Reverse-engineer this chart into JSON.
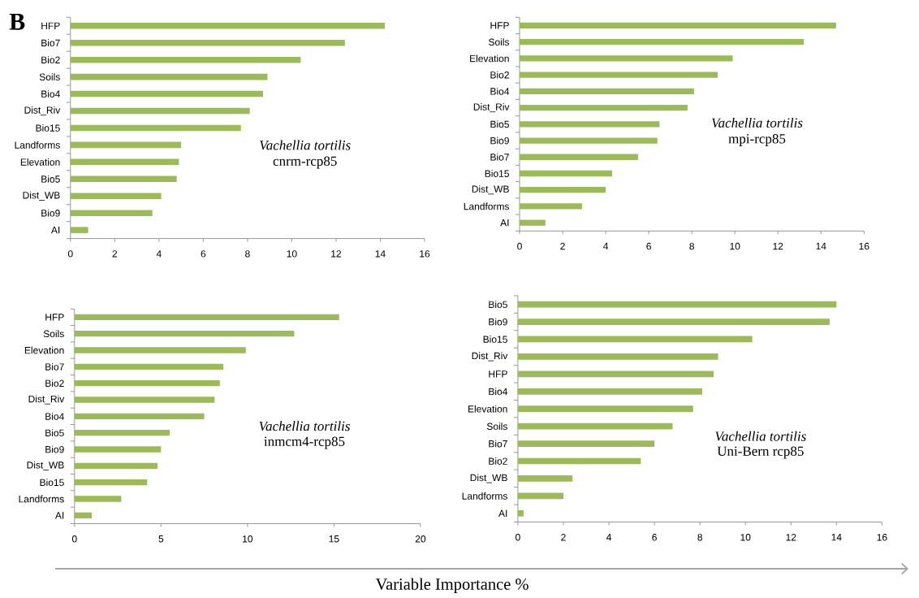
{
  "chart_data": [
    {
      "type": "bar",
      "orientation": "horizontal",
      "title": "Vachellia tortilis",
      "subtitle": "cnrm-rcp85",
      "annotations": [
        "B"
      ],
      "color": "#9bbb59",
      "categories": [
        "HFP",
        "Bio7",
        "Bio2",
        "Soils",
        "Bio4",
        "Dist_Riv",
        "Bio15",
        "Landforms",
        "Elevation",
        "Bio5",
        "Dist_WB",
        "Bio9",
        "AI"
      ],
      "values": [
        14.2,
        12.4,
        10.4,
        8.9,
        8.7,
        8.1,
        7.7,
        5.0,
        4.9,
        4.8,
        4.1,
        3.7,
        0.8
      ],
      "xlim": [
        0,
        16
      ],
      "xticks": [
        0,
        2,
        4,
        6,
        8,
        10,
        12,
        14,
        16
      ]
    },
    {
      "type": "bar",
      "orientation": "horizontal",
      "title": "Vachellia tortilis",
      "subtitle": "mpi-rcp85",
      "color": "#9bbb59",
      "categories": [
        "HFP",
        "Soils",
        "Elevation",
        "Bio2",
        "Bio4",
        "Dist_Riv",
        "Bio5",
        "Bio9",
        "Bio7",
        "Bio15",
        "Dist_WB",
        "Landforms",
        "AI"
      ],
      "values": [
        14.7,
        13.2,
        9.9,
        9.2,
        8.1,
        7.8,
        6.5,
        6.4,
        5.5,
        4.3,
        4.0,
        2.9,
        1.2
      ],
      "xlim": [
        0,
        16
      ],
      "xticks": [
        0,
        2,
        4,
        6,
        8,
        10,
        12,
        14,
        16
      ]
    },
    {
      "type": "bar",
      "orientation": "horizontal",
      "title": "Vachellia tortilis",
      "subtitle": "inmcm4-rcp85",
      "xlabel": "Variable Importance %",
      "color": "#9bbb59",
      "categories": [
        "HFP",
        "Soils",
        "Elevation",
        "Bio7",
        "Bio2",
        "Dist_Riv",
        "Bio4",
        "Bio5",
        "Bio9",
        "Dist_WB",
        "Bio15",
        "Landforms",
        "AI"
      ],
      "values": [
        15.3,
        12.7,
        9.9,
        8.6,
        8.4,
        8.1,
        7.5,
        5.5,
        5.0,
        4.8,
        4.2,
        2.7,
        1.0
      ],
      "xlim": [
        0,
        20
      ],
      "xticks": [
        0,
        5,
        10,
        15,
        20
      ]
    },
    {
      "type": "bar",
      "orientation": "horizontal",
      "title": "Vachellia tortilis",
      "subtitle": "Uni-Bern rcp85",
      "color": "#9bbb59",
      "categories": [
        "Bio5",
        "Bio9",
        "Bio15",
        "Dist_Riv",
        "HFP",
        "Bio4",
        "Elevation",
        "Soils",
        "Bio7",
        "Bio2",
        "Dist_WB",
        "Landforms",
        "AI"
      ],
      "values": [
        14.0,
        13.7,
        10.3,
        8.8,
        8.6,
        8.1,
        7.7,
        6.8,
        6.0,
        5.4,
        2.4,
        2.0,
        0.25
      ],
      "xlim": [
        0,
        16
      ],
      "xticks": [
        0,
        2,
        4,
        6,
        8,
        10,
        12,
        14,
        16
      ]
    }
  ]
}
